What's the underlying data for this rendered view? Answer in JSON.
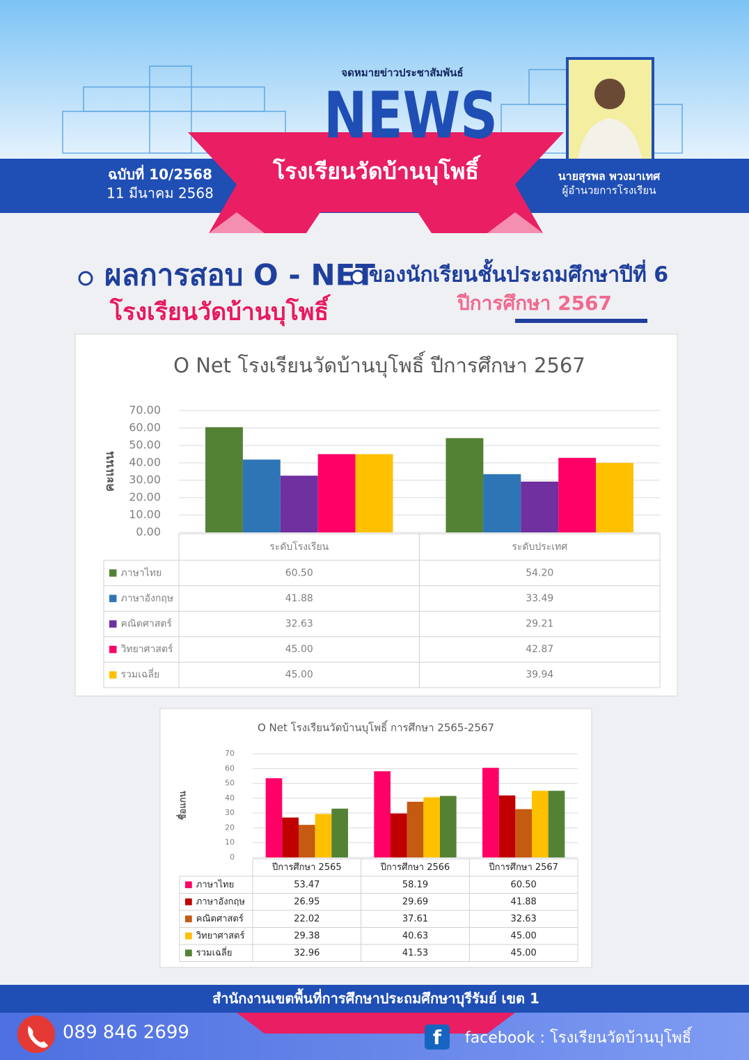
{
  "header": {
    "kicker": "จดหมายข่าวประชาสัมพันธ์",
    "title": "NEWS",
    "school": "โรงเรียนวัดบ้านบุโพธิ์",
    "issue": "ฉบับที่ 10/2568",
    "date": "11 มีนาคม 2568",
    "director_name": "นายสุรพล  พวงมาเทศ",
    "director_role": "ผู้อำนวยการโรงเรียน"
  },
  "headline": {
    "main": "ผลการสอบ O - NET",
    "school": "โรงเรียนวัดบ้านบุโพธิ์",
    "subject": "ของนักเรียนชั้นประถมศึกษาปีที่ 6",
    "year": "ปีการศึกษา 2567"
  },
  "chart_data": [
    {
      "type": "bar",
      "title": "O Net โรงเรียนวัดบ้านบุโพธิ์ ปีการศึกษา 2567",
      "y_label": "คะแนน",
      "categories": [
        "ระดับโรงเรียน",
        "ระดับประเทศ"
      ],
      "series": [
        {
          "name": "ภาษาไทย",
          "color": "#548235",
          "values": [
            60.5,
            54.2
          ],
          "value_labels": [
            "60.50",
            "54.20"
          ]
        },
        {
          "name": "ภาษาอังกฤษ",
          "color": "#2e75b6",
          "values": [
            41.88,
            33.49
          ],
          "value_labels": [
            "41.88",
            "33.49"
          ]
        },
        {
          "name": "คณิตศาสตร์",
          "color": "#7030a0",
          "values": [
            32.63,
            29.21
          ],
          "value_labels": [
            "32.63",
            "29.21"
          ]
        },
        {
          "name": "วิทยาศาสตร์",
          "color": "#ff0066",
          "values": [
            45,
            42.87
          ],
          "value_labels": [
            "45.00",
            "42.87"
          ]
        },
        {
          "name": "รวมเฉลี่ย",
          "color": "#ffc000",
          "values": [
            45,
            39.94
          ],
          "value_labels": [
            "45.00",
            "39.94"
          ]
        }
      ],
      "ylim": [
        0,
        70
      ],
      "yticks": [
        {
          "value": 0,
          "label": "0.00"
        },
        {
          "value": 10,
          "label": "10.00"
        },
        {
          "value": 20,
          "label": "20.00"
        },
        {
          "value": 30,
          "label": "30.00"
        },
        {
          "value": 40,
          "label": "40.00"
        },
        {
          "value": 50,
          "label": "50.00"
        },
        {
          "value": 60,
          "label": "60.00"
        },
        {
          "value": 70,
          "label": "70.00"
        }
      ],
      "grid": true
    },
    {
      "type": "bar",
      "title": "O Net โรงเรียนวัดบ้านบุโพธิ์  การศึกษา 2565-2567",
      "y_label": "ชื่อแกน",
      "categories": [
        "ปีการศึกษา 2565",
        "ปีการศึกษา 2566",
        "ปีการศึกษา 2567"
      ],
      "series": [
        {
          "name": "ภาษาไทย",
          "color": "#ff0066",
          "values": [
            53.47,
            58.19,
            60.5
          ],
          "value_labels": [
            "53.47",
            "58.19",
            "60.50"
          ]
        },
        {
          "name": "ภาษาอังกฤษ",
          "color": "#c00000",
          "values": [
            26.95,
            29.69,
            41.88
          ],
          "value_labels": [
            "26.95",
            "29.69",
            "41.88"
          ]
        },
        {
          "name": "คณิตศาสตร์",
          "color": "#c55a11",
          "values": [
            22.02,
            37.61,
            32.63
          ],
          "value_labels": [
            "22.02",
            "37.61",
            "32.63"
          ]
        },
        {
          "name": "วิทยาศาสตร์",
          "color": "#ffc000",
          "values": [
            29.38,
            40.63,
            45
          ],
          "value_labels": [
            "29.38",
            "40.63",
            "45.00"
          ]
        },
        {
          "name": "รวมเฉลี่ย",
          "color": "#548235",
          "values": [
            32.96,
            41.53,
            45
          ],
          "value_labels": [
            "32.96",
            "41.53",
            "45.00"
          ]
        }
      ],
      "ylim": [
        0,
        70
      ],
      "yticks": [
        0,
        10,
        20,
        30,
        40,
        50,
        60,
        70
      ],
      "grid": true
    }
  ],
  "footer": {
    "office": "สำนักงานเขตพื้นที่การศึกษาประถมศึกษาบุรีรัมย์ เขต 1",
    "phone": "089 846 2699",
    "facebook": "facebook : โรงเรียนวัดบ้านบุโพธิ์"
  }
}
